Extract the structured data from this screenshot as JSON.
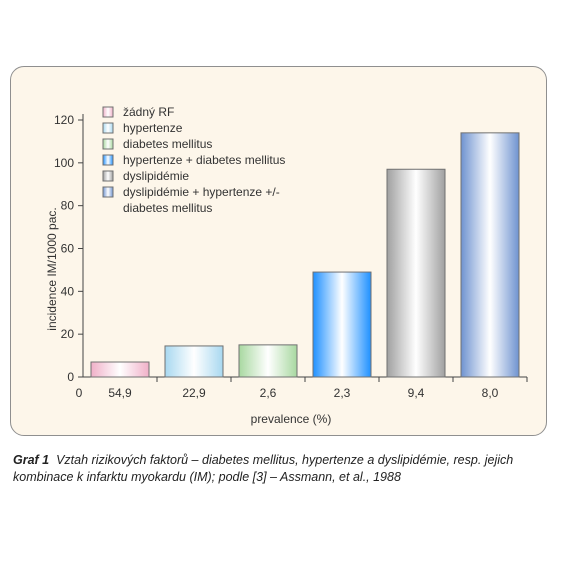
{
  "chart_data": {
    "type": "bar",
    "categories": [
      "54,9",
      "22,9",
      "2,6",
      "2,3",
      "9,4",
      "8,0"
    ],
    "values": [
      7,
      14.5,
      15,
      49,
      97,
      114
    ],
    "series_names": [
      "žádný RF",
      "hypertenze",
      "diabetes mellitus",
      "hypertenze + diabetes mellitus",
      "dyslipidémie",
      "dyslipidémie + hypertenze +/- diabetes mellitus"
    ],
    "legend_lines": [
      [
        "žádný RF"
      ],
      [
        "hypertenze"
      ],
      [
        "diabetes mellitus"
      ],
      [
        "hypertenze + diabetes mellitus"
      ],
      [
        "dyslipidémie"
      ],
      [
        "dyslipidémie + hypertenze +/-",
        "diabetes mellitus"
      ]
    ],
    "colors": {
      "edges": [
        "#f0b0c8",
        "#a8d8f0",
        "#a8d8a0",
        "#1e90ff",
        "#a0a0a0",
        "#6f93d0"
      ],
      "center": "#ffffff",
      "outline": "#707070"
    },
    "xlabel": "prevalence (%)",
    "ylabel": "incidence IM/1000 pac.",
    "ylim": [
      0,
      120
    ],
    "yticks": [
      "0",
      "20",
      "40",
      "60",
      "80",
      "100",
      "120"
    ],
    "x_origin_label": "0",
    "legend_position": "top-left",
    "grid": false
  },
  "caption": {
    "label": "Graf 1",
    "text": "Vztah rizikových faktorů – diabetes mellitus, hypertenze a dyslipidémie, resp. jejich kombinace k infarktu myokardu (IM); podle [3] – Assmann, et al., 1988"
  }
}
